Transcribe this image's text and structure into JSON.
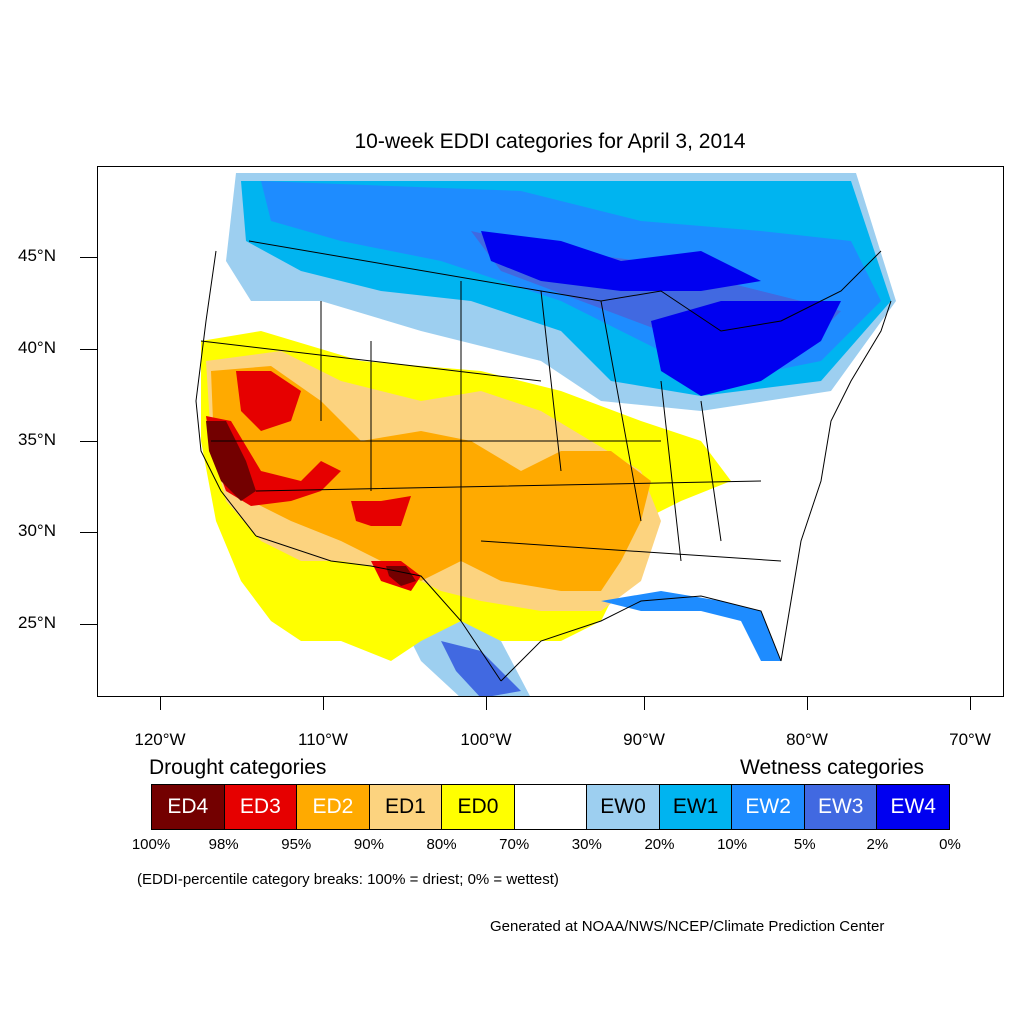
{
  "title": "10-week EDDI categories for April 3, 2014",
  "y_axis_labels": [
    "45°N",
    "40°N",
    "35°N",
    "30°N",
    "25°N"
  ],
  "x_axis_labels": [
    "120°W",
    "110°W",
    "100°W",
    "90°W",
    "80°W",
    "70°W"
  ],
  "legend": {
    "drought_heading": "Drought categories",
    "wetness_heading": "Wetness categories",
    "categories": [
      {
        "label": "ED4",
        "color": "#730000",
        "text_color": "#ffffff"
      },
      {
        "label": "ED3",
        "color": "#e60000",
        "text_color": "#ffffff"
      },
      {
        "label": "ED2",
        "color": "#ffaa00",
        "text_color": "#ffffff"
      },
      {
        "label": "ED1",
        "color": "#fcd37f",
        "text_color": "#000000"
      },
      {
        "label": "ED0",
        "color": "#ffff00",
        "text_color": "#000000"
      },
      {
        "label": "",
        "color": "#ffffff",
        "text_color": "#000000"
      },
      {
        "label": "EW0",
        "color": "#9dcff0",
        "text_color": "#000000"
      },
      {
        "label": "EW1",
        "color": "#00b4f0",
        "text_color": "#000000"
      },
      {
        "label": "EW2",
        "color": "#1e8cff",
        "text_color": "#ffffff"
      },
      {
        "label": "EW3",
        "color": "#4169e1",
        "text_color": "#ffffff"
      },
      {
        "label": "EW4",
        "color": "#0000f0",
        "text_color": "#ffffff"
      }
    ],
    "percentiles": [
      "100%",
      "98%",
      "95%",
      "90%",
      "80%",
      "70%",
      "30%",
      "20%",
      "10%",
      "5%",
      "2%",
      "0%"
    ]
  },
  "note": "(EDDI-percentile category breaks: 100% = driest; 0% = wettest)",
  "credit": "Generated at NOAA/NWS/NCEP/Climate Prediction Center"
}
